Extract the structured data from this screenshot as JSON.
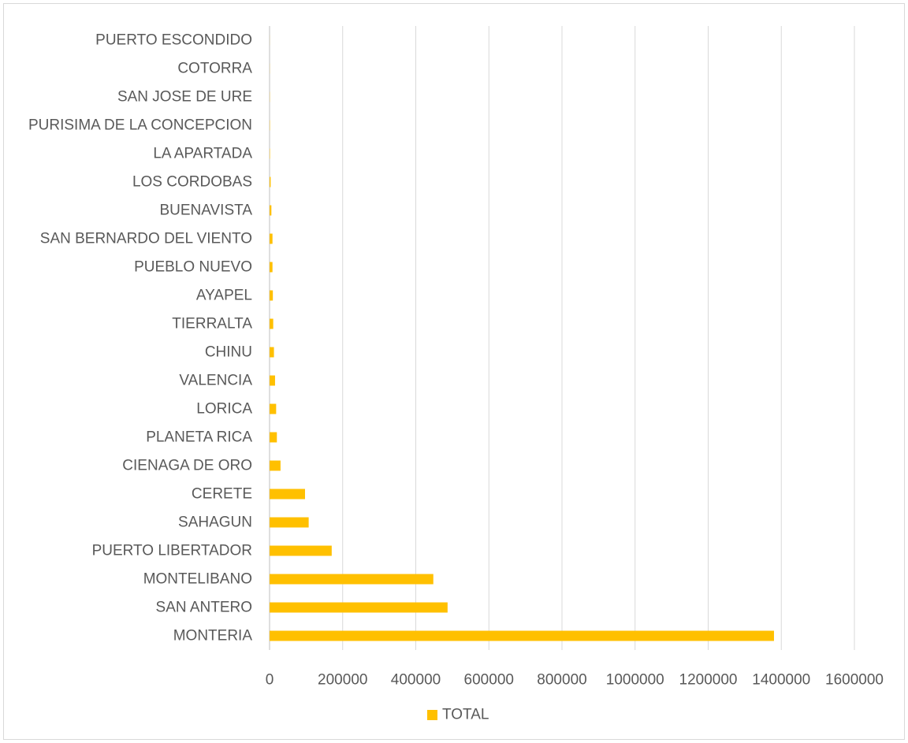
{
  "chart_data": {
    "type": "bar",
    "orientation": "horizontal",
    "title": "",
    "xlabel": "",
    "ylabel": "",
    "xlim": [
      0,
      1600000
    ],
    "x_ticks": [
      0,
      200000,
      400000,
      600000,
      800000,
      1000000,
      1200000,
      1400000,
      1600000
    ],
    "x_tick_labels": [
      "0",
      "200000",
      "400000",
      "600000",
      "800000",
      "1000000",
      "1200000",
      "1400000",
      "1600000"
    ],
    "grid": "vertical",
    "legend_position": "bottom",
    "categories": [
      "MONTERIA",
      "SAN ANTERO",
      "MONTELIBANO",
      "PUERTO LIBERTADOR",
      "SAHAGUN",
      "CERETE",
      "CIENAGA DE ORO",
      "PLANETA RICA",
      "LORICA",
      "VALENCIA",
      "CHINU",
      "TIERRALTA",
      "AYAPEL",
      "PUEBLO NUEVO",
      "SAN BERNARDO DEL VIENTO",
      "BUENAVISTA",
      "LOS CORDOBAS",
      "LA APARTADA",
      "PURISIMA DE LA CONCEPCION",
      "SAN JOSE DE URE",
      "COTORRA",
      "PUERTO ESCONDIDO"
    ],
    "series": [
      {
        "name": "TOTAL",
        "color": "#ffc000",
        "values": [
          1380000,
          487000,
          448000,
          170000,
          107000,
          97000,
          30000,
          20000,
          18000,
          15000,
          12000,
          10000,
          9000,
          8000,
          8000,
          5000,
          3000,
          1000,
          800,
          500,
          300,
          200
        ]
      }
    ]
  },
  "colors": {
    "bar": "#ffc000",
    "grid": "#d9d9d9",
    "axis": "#bfbfbf",
    "text": "#595959"
  }
}
